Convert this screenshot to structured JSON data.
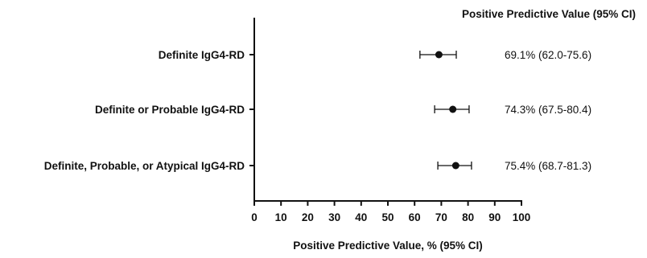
{
  "chart_data": {
    "type": "scatter",
    "subtype": "forest-plot",
    "column_header": "Positive Predictive Value (95% CI)",
    "xlabel": "Positive Predictive Value, % (95% CI)",
    "xlim": [
      0,
      100
    ],
    "xticks": [
      0,
      10,
      20,
      30,
      40,
      50,
      60,
      70,
      80,
      90,
      100
    ],
    "grid": false,
    "marker_color": "#111111",
    "rows": [
      {
        "label": "Definite IgG4-RD",
        "value": 69.1,
        "ci_low": 62.0,
        "ci_high": 75.6,
        "annotation": "69.1% (62.0-75.6)"
      },
      {
        "label": "Definite or Probable IgG4-RD",
        "value": 74.3,
        "ci_low": 67.5,
        "ci_high": 80.4,
        "annotation": "74.3% (67.5-80.4)"
      },
      {
        "label": "Definite, Probable, or Atypical IgG4-RD",
        "value": 75.4,
        "ci_low": 68.7,
        "ci_high": 81.3,
        "annotation": "75.4% (68.7-81.3)"
      }
    ]
  }
}
